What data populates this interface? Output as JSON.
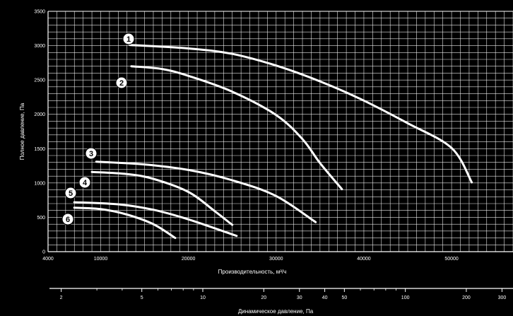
{
  "chart_data": {
    "type": "line",
    "xlabel": "Производительность, м³/ч",
    "ylabel": "Полное давление, Па",
    "x2label": "Динамическое давление, Па",
    "xlim": [
      4000,
      57000
    ],
    "ylim": [
      0,
      3500
    ],
    "x_ticks": [
      {
        "value": 4000,
        "label": "4000"
      },
      {
        "value": 10000,
        "label": "10000"
      },
      {
        "value": 20000,
        "label": "20000"
      },
      {
        "value": 30000,
        "label": "30000"
      },
      {
        "value": 40000,
        "label": "40000"
      },
      {
        "value": 50000,
        "label": "50000"
      }
    ],
    "y_ticks": [
      {
        "value": 0,
        "label": "0"
      },
      {
        "value": 500,
        "label": "500"
      },
      {
        "value": 1000,
        "label": "1000"
      },
      {
        "value": 1500,
        "label": "1500"
      },
      {
        "value": 2000,
        "label": "2000"
      },
      {
        "value": 2500,
        "label": "2500"
      },
      {
        "value": 3000,
        "label": "3000"
      },
      {
        "value": 3500,
        "label": "3500"
      }
    ],
    "x2_scale": "log",
    "x2_major_ticks": [
      {
        "value": 2,
        "label": "2"
      },
      {
        "value": 5,
        "label": "5"
      },
      {
        "value": 10,
        "label": "10"
      },
      {
        "value": 20,
        "label": "20"
      },
      {
        "value": 30,
        "label": "30"
      },
      {
        "value": 40,
        "label": "40"
      },
      {
        "value": 50,
        "label": "50"
      },
      {
        "value": 100,
        "label": "100"
      },
      {
        "value": 200,
        "label": "200"
      },
      {
        "value": 300,
        "label": "300"
      }
    ],
    "x2_minor_ticks": [
      3,
      4,
      6,
      7,
      8,
      9,
      60,
      70,
      80,
      90
    ],
    "grid": true,
    "series": [
      {
        "label": "1",
        "points": [
          [
            13300,
            3010
          ],
          [
            20000,
            2960
          ],
          [
            25000,
            2880
          ],
          [
            30000,
            2710
          ],
          [
            35000,
            2480
          ],
          [
            40000,
            2200
          ],
          [
            45000,
            1870
          ],
          [
            50000,
            1510
          ],
          [
            52300,
            1010
          ]
        ]
      },
      {
        "label": "2",
        "points": [
          [
            13500,
            2700
          ],
          [
            17000,
            2660
          ],
          [
            20000,
            2560
          ],
          [
            25000,
            2330
          ],
          [
            30000,
            1990
          ],
          [
            33000,
            1640
          ],
          [
            35000,
            1290
          ],
          [
            37500,
            910
          ]
        ]
      },
      {
        "label": "3",
        "points": [
          [
            9500,
            1310
          ],
          [
            15000,
            1270
          ],
          [
            20000,
            1190
          ],
          [
            25000,
            1040
          ],
          [
            30000,
            810
          ],
          [
            34500,
            430
          ]
        ]
      },
      {
        "label": "4",
        "points": [
          [
            9000,
            1160
          ],
          [
            13000,
            1130
          ],
          [
            16000,
            1060
          ],
          [
            20000,
            870
          ],
          [
            23000,
            590
          ],
          [
            25000,
            390
          ]
        ]
      },
      {
        "label": "5",
        "points": [
          [
            7000,
            720
          ],
          [
            12000,
            690
          ],
          [
            16000,
            610
          ],
          [
            20000,
            470
          ],
          [
            25500,
            230
          ]
        ]
      },
      {
        "label": "6",
        "points": [
          [
            7000,
            640
          ],
          [
            10000,
            620
          ],
          [
            13000,
            540
          ],
          [
            16000,
            400
          ],
          [
            18500,
            200
          ]
        ]
      }
    ],
    "series_color": "#ffffff"
  }
}
